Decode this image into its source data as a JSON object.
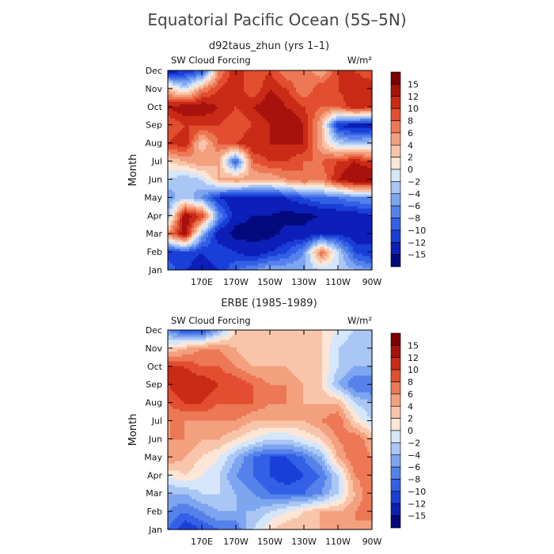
{
  "main_title": "Equatorial Pacific Ocean (5S–5N)",
  "chart_data": [
    {
      "type": "heatmap",
      "title": "d92taus_zhun (yrs 1–1)",
      "left_label": "SW Cloud Forcing",
      "right_label": "W/m²",
      "ylabel": "Month",
      "y_ticks": [
        "Jan",
        "Feb",
        "Mar",
        "Apr",
        "May",
        "Jun",
        "Jul",
        "Aug",
        "Sep",
        "Oct",
        "Nov",
        "Dec"
      ],
      "x_ticks": [
        "170E",
        "170W",
        "150W",
        "130W",
        "110W",
        "90W"
      ],
      "x_tick_lon": [
        170,
        190,
        210,
        230,
        250,
        270
      ],
      "xlim_lon": [
        150,
        270
      ],
      "colorbar_labels": [
        "15",
        "12",
        "10",
        "8",
        "6",
        "4",
        "2",
        "0",
        "−2",
        "−4",
        "−6",
        "−8",
        "−10",
        "−12",
        "−15"
      ],
      "lon": [
        150,
        160,
        170,
        180,
        190,
        200,
        210,
        220,
        230,
        240,
        250,
        260,
        270
      ],
      "values": [
        [
          -8,
          -12,
          -14,
          -12,
          -8,
          -6,
          -4,
          -4,
          -4,
          -2,
          -2,
          -4,
          -6
        ],
        [
          -12,
          -10,
          -12,
          -10,
          -12,
          -14,
          -12,
          -10,
          -6,
          8,
          -2,
          -10,
          -12
        ],
        [
          6,
          14,
          -4,
          -14,
          -16,
          -16,
          -16,
          -14,
          -14,
          -12,
          -12,
          -14,
          -12
        ],
        [
          -4,
          14,
          10,
          -6,
          -14,
          -15,
          -15,
          -16,
          -16,
          -15,
          -14,
          -14,
          -12
        ],
        [
          -6,
          -2,
          -6,
          -12,
          -14,
          -14,
          -14,
          -12,
          -10,
          -8,
          -8,
          -6,
          -6
        ],
        [
          -2,
          -4,
          -2,
          4,
          6,
          4,
          4,
          6,
          8,
          6,
          12,
          15,
          15
        ],
        [
          2,
          4,
          6,
          4,
          -10,
          8,
          10,
          10,
          8,
          8,
          10,
          12,
          10
        ],
        [
          10,
          12,
          2,
          8,
          10,
          12,
          12,
          12,
          12,
          4,
          -2,
          -4,
          -2
        ],
        [
          8,
          10,
          10,
          10,
          8,
          10,
          12,
          15,
          12,
          4,
          -12,
          -14,
          -14
        ],
        [
          12,
          14,
          14,
          12,
          10,
          12,
          14,
          12,
          10,
          8,
          8,
          12,
          10
        ],
        [
          4,
          -2,
          6,
          10,
          12,
          8,
          12,
          10,
          6,
          10,
          10,
          12,
          12
        ],
        [
          -14,
          -12,
          -10,
          6,
          12,
          8,
          10,
          6,
          8,
          4,
          10,
          10,
          8
        ]
      ]
    },
    {
      "type": "heatmap",
      "title": "ERBE (1985–1989)",
      "left_label": "SW Cloud Forcing",
      "right_label": "W/m²",
      "ylabel": "Month",
      "y_ticks": [
        "Jan",
        "Feb",
        "Mar",
        "Apr",
        "May",
        "Jun",
        "Jul",
        "Aug",
        "Sep",
        "Oct",
        "Nov",
        "Dec"
      ],
      "x_ticks": [
        "170E",
        "170W",
        "150W",
        "130W",
        "110W",
        "90W"
      ],
      "x_tick_lon": [
        170,
        190,
        210,
        230,
        250,
        270
      ],
      "xlim_lon": [
        150,
        270
      ],
      "colorbar_labels": [
        "15",
        "12",
        "10",
        "8",
        "6",
        "4",
        "2",
        "0",
        "−2",
        "−4",
        "−6",
        "−8",
        "−10",
        "−12",
        "−15"
      ],
      "lon": [
        150,
        160,
        170,
        180,
        190,
        200,
        210,
        220,
        230,
        240,
        250,
        260,
        270
      ],
      "values": [
        [
          -8,
          -12,
          -10,
          -8,
          -8,
          -2,
          2,
          4,
          4,
          4,
          6,
          6,
          4
        ],
        [
          -6,
          -8,
          -6,
          -4,
          -4,
          -4,
          -2,
          0,
          2,
          4,
          4,
          6,
          8
        ],
        [
          -4,
          -4,
          -2,
          -2,
          -4,
          -6,
          -8,
          -8,
          -8,
          -6,
          -2,
          4,
          8
        ],
        [
          0,
          2,
          0,
          -2,
          -6,
          -8,
          -10,
          -12,
          -10,
          -8,
          -2,
          6,
          8
        ],
        [
          6,
          4,
          2,
          0,
          -4,
          -8,
          -10,
          -10,
          -8,
          -4,
          4,
          8,
          6
        ],
        [
          6,
          6,
          4,
          4,
          2,
          0,
          -2,
          -2,
          0,
          2,
          6,
          8,
          4
        ],
        [
          6,
          6,
          6,
          6,
          6,
          4,
          4,
          4,
          4,
          6,
          8,
          2,
          -2
        ],
        [
          8,
          10,
          10,
          8,
          8,
          8,
          6,
          6,
          4,
          4,
          4,
          -2,
          -4
        ],
        [
          10,
          12,
          12,
          10,
          10,
          8,
          6,
          6,
          4,
          2,
          -4,
          -8,
          -8
        ],
        [
          10,
          10,
          8,
          8,
          6,
          4,
          4,
          4,
          2,
          2,
          -2,
          -4,
          -4
        ],
        [
          2,
          4,
          6,
          6,
          4,
          2,
          2,
          2,
          2,
          2,
          -2,
          -4,
          -2
        ],
        [
          -6,
          -10,
          -10,
          -4,
          2,
          2,
          2,
          2,
          2,
          2,
          0,
          -2,
          -2
        ]
      ]
    }
  ]
}
